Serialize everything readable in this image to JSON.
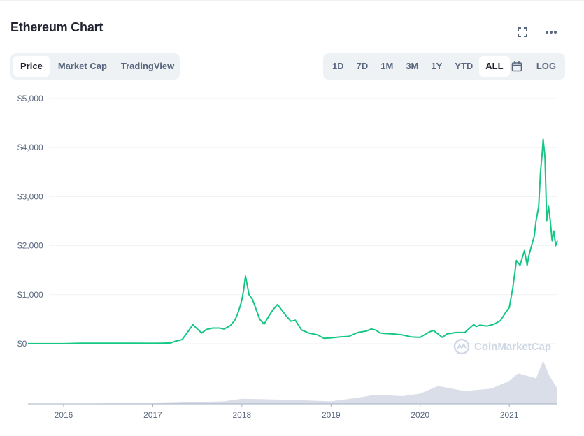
{
  "title": "Ethereum Chart",
  "icons": {
    "fullscreen": "fullscreen-icon",
    "more": "more-icon",
    "calendar": "calendar-icon",
    "logo": "coinmarketcap-logo-icon"
  },
  "tabs": [
    {
      "label": "Price",
      "active": true
    },
    {
      "label": "Market Cap",
      "active": false
    },
    {
      "label": "TradingView",
      "active": false
    }
  ],
  "ranges": [
    {
      "label": "1D",
      "active": false
    },
    {
      "label": "7D",
      "active": false
    },
    {
      "label": "1M",
      "active": false
    },
    {
      "label": "3M",
      "active": false
    },
    {
      "label": "1Y",
      "active": false
    },
    {
      "label": "YTD",
      "active": false
    },
    {
      "label": "ALL",
      "active": true
    }
  ],
  "log_label": "LOG",
  "watermark": "CoinMarketCap",
  "colors": {
    "line": "#16c784",
    "grid": "#eff2f5",
    "axis_text": "#58667e",
    "volume": "#cfd6e4",
    "watermark": "#cfd6e4"
  },
  "chart_data": {
    "type": "line",
    "series": [
      {
        "x": [
          2015.6,
          2015.8,
          2016.0,
          2016.2,
          2016.4,
          2016.6,
          2016.8,
          2017.0,
          2017.1,
          2017.2,
          2017.25,
          2017.33,
          2017.4,
          2017.45,
          2017.5,
          2017.55,
          2017.6,
          2017.67,
          2017.75,
          2017.8,
          2017.87,
          2017.92,
          2017.95,
          2017.98,
          2018.0,
          2018.02,
          2018.04,
          2018.08,
          2018.12,
          2018.17,
          2018.2,
          2018.25,
          2018.3,
          2018.35,
          2018.4,
          2018.45,
          2018.5,
          2018.55,
          2018.6,
          2018.67,
          2018.75,
          2018.85,
          2018.92,
          2019.0,
          2019.1,
          2019.2,
          2019.3,
          2019.4,
          2019.45,
          2019.5,
          2019.55,
          2019.6,
          2019.7,
          2019.8,
          2019.9,
          2020.0,
          2020.1,
          2020.15,
          2020.2,
          2020.25,
          2020.3,
          2020.4,
          2020.5,
          2020.6,
          2020.63,
          2020.67,
          2020.75,
          2020.83,
          2020.9,
          2020.96,
          2021.0,
          2021.04,
          2021.08,
          2021.12,
          2021.17,
          2021.2,
          2021.22,
          2021.25,
          2021.28,
          2021.3,
          2021.33,
          2021.35,
          2021.37,
          2021.38,
          2021.4,
          2021.42,
          2021.44,
          2021.46,
          2021.48,
          2021.5,
          2021.52,
          2021.54
        ],
        "y": [
          1,
          1,
          1,
          10,
          12,
          11,
          10,
          8,
          11,
          15,
          50,
          85,
          260,
          390,
          300,
          220,
          290,
          320,
          320,
          300,
          370,
          480,
          600,
          760,
          900,
          1100,
          1380,
          1000,
          900,
          650,
          500,
          400,
          560,
          700,
          800,
          680,
          560,
          460,
          480,
          280,
          220,
          180,
          110,
          120,
          140,
          150,
          230,
          260,
          300,
          280,
          220,
          210,
          200,
          180,
          140,
          130,
          240,
          270,
          200,
          130,
          200,
          230,
          230,
          390,
          350,
          380,
          360,
          400,
          470,
          640,
          740,
          1150,
          1700,
          1600,
          1900,
          1600,
          1800,
          2000,
          2200,
          2500,
          2800,
          3500,
          3900,
          4170,
          3800,
          2500,
          2800,
          2500,
          2100,
          2300,
          2000,
          2100
        ]
      }
    ],
    "volume": {
      "x": [
        2015.6,
        2016.0,
        2016.5,
        2017.0,
        2017.4,
        2017.8,
        2018.0,
        2018.5,
        2019.0,
        2019.3,
        2019.5,
        2019.8,
        2020.0,
        2020.2,
        2020.5,
        2020.8,
        2021.0,
        2021.1,
        2021.2,
        2021.3,
        2021.38,
        2021.45,
        2021.54
      ],
      "y": [
        0.0,
        0.0,
        0.01,
        0.01,
        0.03,
        0.05,
        0.1,
        0.08,
        0.05,
        0.12,
        0.18,
        0.15,
        0.2,
        0.35,
        0.25,
        0.3,
        0.45,
        0.6,
        0.55,
        0.5,
        0.85,
        0.55,
        0.3
      ]
    },
    "x_ticks": [
      "2016",
      "2017",
      "2018",
      "2019",
      "2020",
      "2021"
    ],
    "x_tick_values": [
      2016,
      2017,
      2018,
      2019,
      2020,
      2021
    ],
    "y_ticks": [
      "$5,000",
      "$4,000",
      "$3,000",
      "$2,000",
      "$1,000",
      "$0"
    ],
    "y_tick_values": [
      5000,
      4000,
      3000,
      2000,
      1000,
      0
    ],
    "xlim": [
      2015.6,
      2021.54
    ],
    "ylim": [
      0,
      5000
    ],
    "grid": true,
    "legend": "none"
  }
}
